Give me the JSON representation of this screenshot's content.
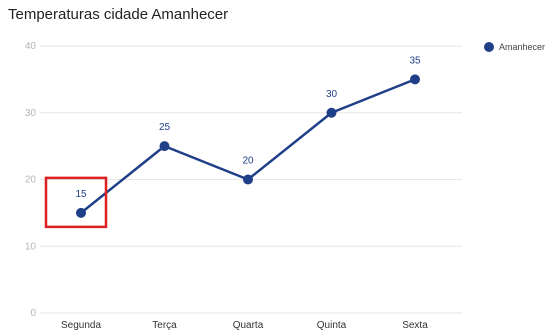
{
  "chart_data": {
    "type": "line",
    "title": "Temperaturas cidade Amanhecer",
    "categories": [
      "Segunda",
      "Terça",
      "Quarta",
      "Quinta",
      "Sexta"
    ],
    "series": [
      {
        "name": "Amanhecer",
        "values": [
          15,
          25,
          20,
          30,
          35
        ]
      }
    ],
    "ylim": [
      0,
      40
    ],
    "yticks": [
      0,
      10,
      20,
      30,
      40
    ],
    "xlabel": "",
    "ylabel": "",
    "grid": true,
    "legend": "top-right",
    "data_labels": true,
    "highlight_category": "Segunda"
  },
  "colors": {
    "series": "#1f3f88",
    "grid": "#e6e6e6",
    "highlight": "#e02020"
  }
}
